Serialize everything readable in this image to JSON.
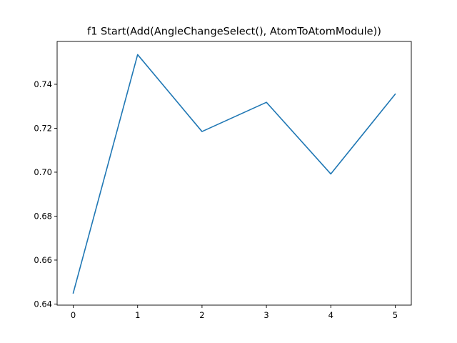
{
  "chart_data": {
    "type": "line",
    "title": "f1 Start(Add(AngleChangeSelect(), AtomToAtomModule))",
    "xlabel": "",
    "ylabel": "",
    "x": [
      0,
      1,
      2,
      3,
      4,
      5
    ],
    "series": [
      {
        "values": [
          0.645,
          0.7535,
          0.7185,
          0.7318,
          0.6992,
          0.7355
        ],
        "color": "#1f77b4"
      }
    ],
    "xlim": [
      -0.25,
      5.25
    ],
    "ylim": [
      0.6395,
      0.7595
    ],
    "xticks": [
      "0",
      "1",
      "2",
      "3",
      "4",
      "5"
    ],
    "yticks": [
      "0.64",
      "0.66",
      "0.68",
      "0.70",
      "0.72",
      "0.74"
    ],
    "grid": false,
    "legend": "none"
  }
}
